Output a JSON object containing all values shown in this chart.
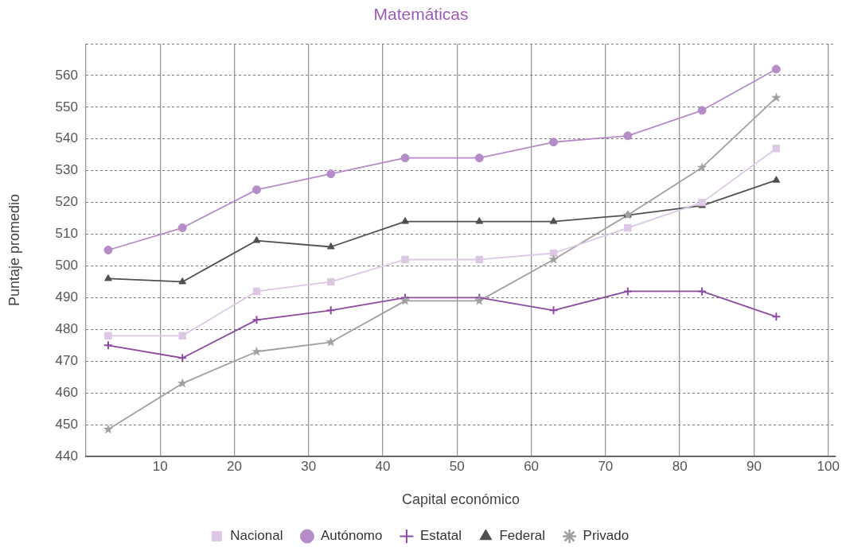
{
  "chart_data": {
    "type": "line",
    "title": "Matemáticas",
    "xlabel": "Capital económico",
    "ylabel": "Puntaje promedio",
    "x": [
      3,
      13,
      23,
      33,
      43,
      53,
      63,
      73,
      83,
      93
    ],
    "xlim": [
      0,
      101
    ],
    "xticks": [
      {
        "value": 0,
        "label": null
      },
      10,
      20,
      30,
      40,
      50,
      60,
      70,
      80,
      90,
      100
    ],
    "ylim": [
      440,
      570
    ],
    "yticks": [
      440,
      450,
      460,
      470,
      480,
      490,
      500,
      510,
      520,
      530,
      540,
      550,
      560,
      {
        "value": 570,
        "label": null
      }
    ],
    "grid": true,
    "legend": "bottom",
    "line_style": "solid",
    "series": [
      {
        "name": "Nacional",
        "color": "#dcc8e4",
        "marker": "square",
        "values": [
          478,
          478,
          492,
          495,
          502,
          502,
          504,
          512,
          520,
          537
        ]
      },
      {
        "name": "Autónomo",
        "color": "#b48cc8",
        "marker": "circle",
        "values": [
          505,
          512,
          524,
          529,
          534,
          534,
          539,
          541,
          549,
          562
        ]
      },
      {
        "name": "Estatal",
        "color": "#8c4ba0",
        "marker": "cross",
        "values": [
          475,
          471,
          483,
          486,
          490,
          490,
          486,
          492,
          492,
          484
        ]
      },
      {
        "name": "Federal",
        "color": "#505050",
        "marker": "triangle",
        "values": [
          496,
          495,
          508,
          506,
          514,
          514,
          514,
          516,
          519,
          527
        ]
      },
      {
        "name": "Privado",
        "color": "#a0a0a0",
        "marker": "star",
        "values": [
          448.5,
          463,
          473,
          476,
          489,
          489,
          502,
          516,
          531,
          553
        ]
      }
    ]
  }
}
